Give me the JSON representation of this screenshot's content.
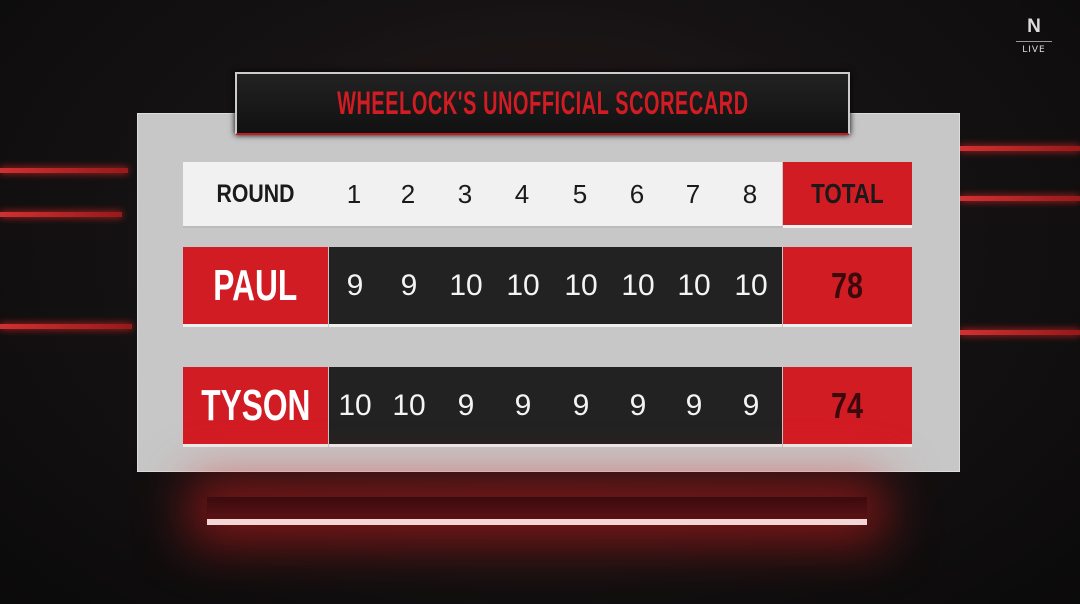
{
  "broadcaster": {
    "logo": "N",
    "status": "LIVE"
  },
  "title": "WHEELOCK'S UNOFFICIAL SCORECARD",
  "header": {
    "label": "ROUND",
    "rounds": [
      "1",
      "2",
      "3",
      "4",
      "5",
      "6",
      "7",
      "8"
    ],
    "total_label": "TOTAL"
  },
  "fighters": [
    {
      "name": "PAUL",
      "scores": [
        "9",
        "9",
        "10",
        "10",
        "10",
        "10",
        "10",
        "10"
      ],
      "total": "78"
    },
    {
      "name": "TYSON",
      "scores": [
        "10",
        "10",
        "9",
        "9",
        "9",
        "9",
        "9",
        "9"
      ],
      "total": "74"
    }
  ],
  "colors": {
    "accent": "#d21c24",
    "score_bg": "#222222",
    "panel": "#c7c7c7"
  }
}
